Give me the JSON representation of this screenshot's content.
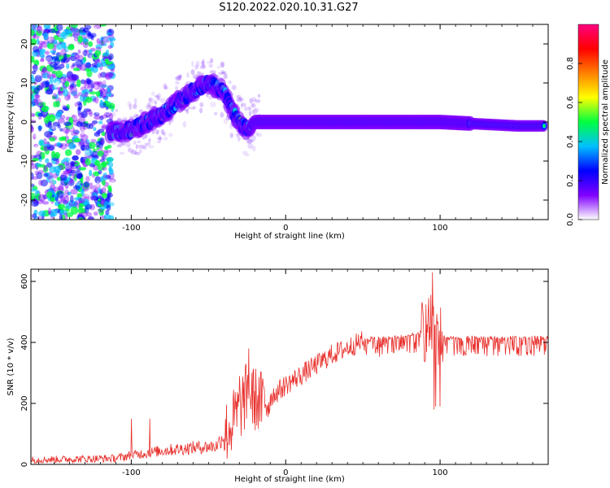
{
  "title": "S120.2022.020.10.31.G27",
  "chart_data": [
    {
      "type": "heatmap",
      "xlabel": "Height of straight line (km)",
      "ylabel": "Frequency (Hz)",
      "xlim": [
        -165,
        170
      ],
      "ylim": [
        -25,
        25
      ],
      "xticks": [
        -100,
        0,
        100
      ],
      "yticks": [
        -20,
        -10,
        0,
        10,
        20
      ],
      "colorbar": {
        "label": "Normalized spectral amplitude",
        "range": [
          0,
          1
        ],
        "ticks": [
          "0.0",
          "0.2",
          "0.4",
          "0.6",
          "0.8"
        ],
        "colors": [
          "#ffffff",
          "#8000ff",
          "#0000ff",
          "#00c0ff",
          "#00ff40",
          "#ffff00",
          "#ff8000",
          "#ff0000",
          "#ff0080"
        ]
      },
      "ridge": {
        "x": [
          -115,
          -100,
          -90,
          -80,
          -70,
          -60,
          -50,
          -40,
          -35,
          -30,
          -25,
          -20,
          0,
          50,
          100,
          150,
          170
        ],
        "y": [
          -3,
          -2,
          0,
          2,
          5,
          8,
          10,
          8,
          3,
          0,
          -2,
          0,
          0,
          0,
          0,
          -1,
          -1
        ]
      }
    },
    {
      "type": "line",
      "xlabel": "Height of straight line (km)",
      "ylabel": "SNR (10 * v/v)",
      "xlim": [
        -165,
        170
      ],
      "ylim": [
        0,
        640
      ],
      "xticks": [
        -100,
        0,
        100
      ],
      "yticks": [
        0,
        200,
        400,
        600
      ],
      "color": "#e8302c",
      "envelope": {
        "x": [
          -165,
          -110,
          -100,
          -80,
          -60,
          -45,
          -35,
          -25,
          -15,
          0,
          15,
          30,
          50,
          70,
          85,
          90,
          95,
          100,
          105,
          120,
          170
        ],
        "y": [
          15,
          20,
          30,
          45,
          55,
          60,
          130,
          230,
          200,
          260,
          310,
          360,
          405,
          410,
          420,
          440,
          450,
          420,
          410,
          410,
          410
        ]
      },
      "spikes": {
        "x": [
          -100,
          -88,
          -30,
          -24,
          -22,
          95,
          96,
          97,
          100
        ],
        "y": [
          150,
          150,
          290,
          380,
          300,
          630,
          180,
          190,
          190
        ]
      }
    }
  ]
}
